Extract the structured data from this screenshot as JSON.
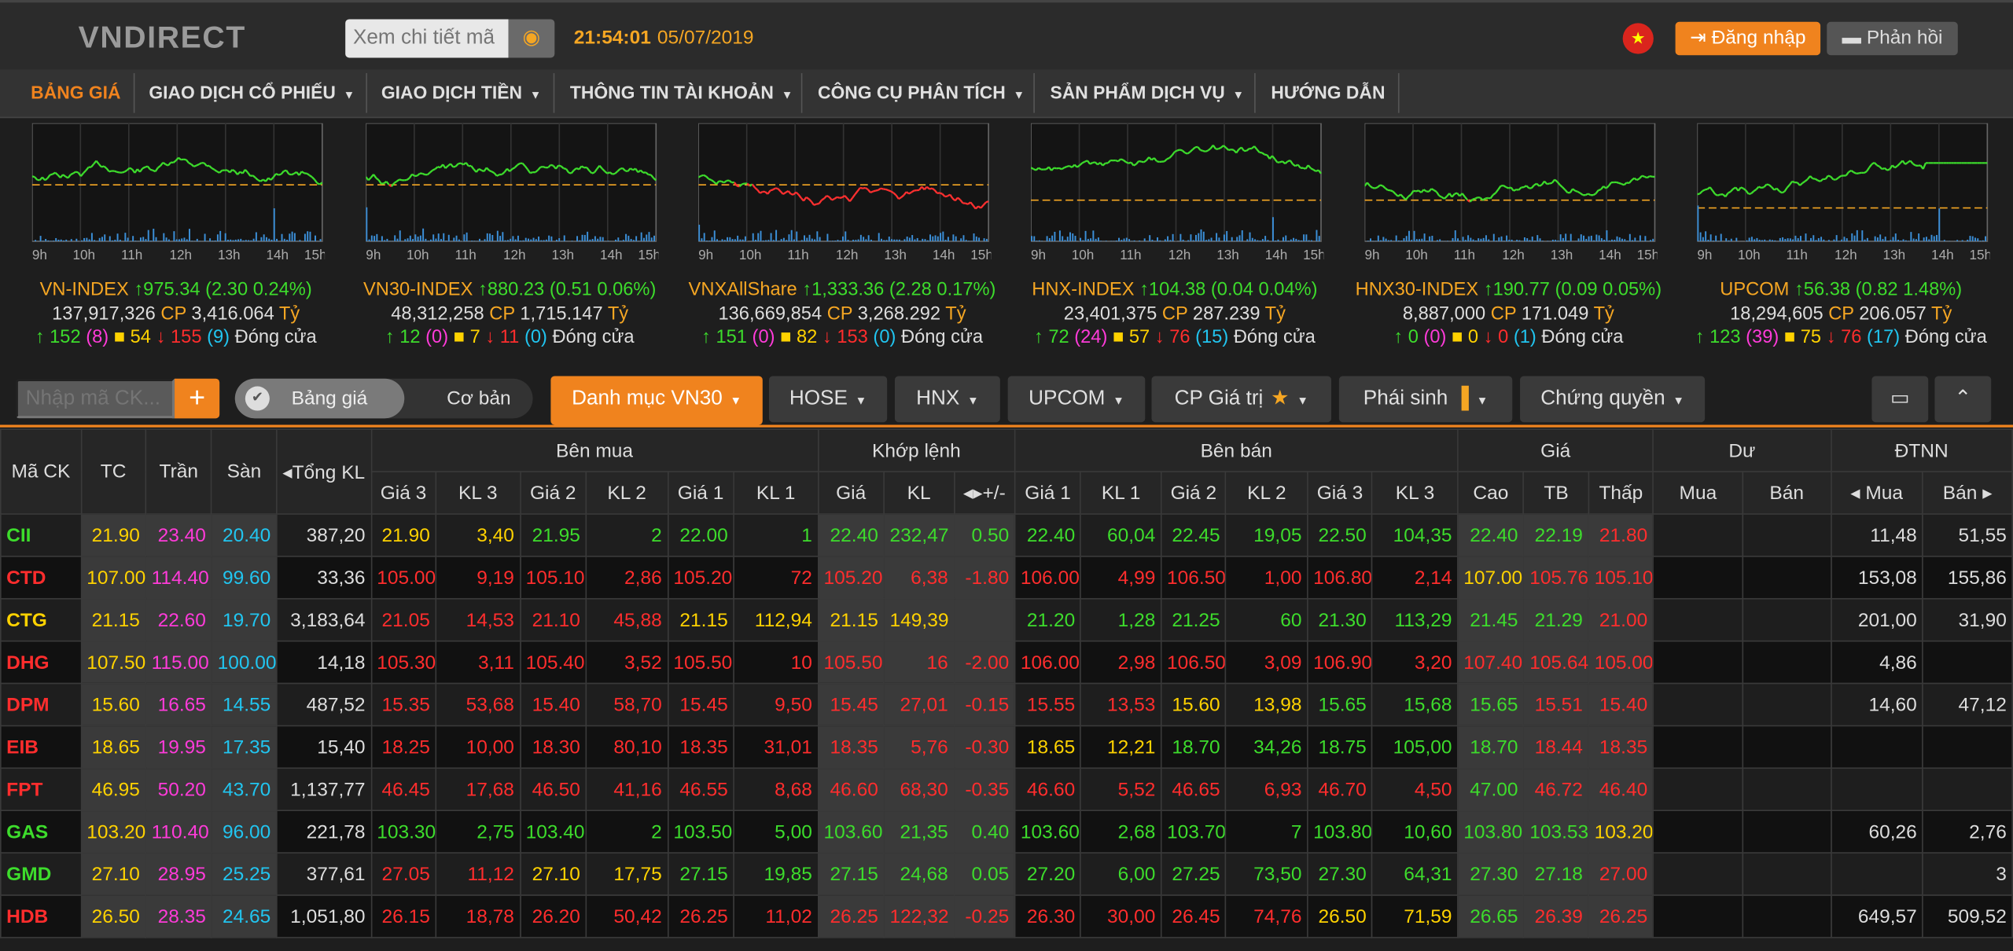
{
  "header": {
    "logo": "VNDIRECT",
    "search_placeholder": "Xem chi tiết mã",
    "time": "21:54:01",
    "date": "05/07/2019",
    "login": "Đăng nhập",
    "feedback": "Phản hồi"
  },
  "nav": [
    "BẢNG GIÁ",
    "GIAO DỊCH CỔ PHIẾU",
    "GIAO DỊCH TIỀN",
    "THÔNG TIN TÀI KHOẢN",
    "CÔNG CỤ PHÂN TÍCH",
    "SẢN PHẨM DỊCH VỤ",
    "HƯỚNG DẪN"
  ],
  "x_ticks": [
    "9h",
    "10h",
    "11h",
    "12h",
    "13h",
    "14h",
    "15h"
  ],
  "indices": [
    {
      "name": "VN-INDEX",
      "value": "975.34",
      "change": "(2.30 0.24%)",
      "vol": "137,917,326",
      "cp": "CP",
      "amt": "3,416.064",
      "unit": "Tỷ",
      "adv": "152",
      "ce": "(8)",
      "unch": "54",
      "dec": "155",
      "fl": "(9)",
      "status": "Đóng cửa"
    },
    {
      "name": "VN30-INDEX",
      "value": "880.23",
      "change": "(0.51 0.06%)",
      "vol": "48,312,258",
      "cp": "CP",
      "amt": "1,715.147",
      "unit": "Tỷ",
      "adv": "12",
      "ce": "(0)",
      "unch": "7",
      "dec": "11",
      "fl": "(0)",
      "status": "Đóng cửa"
    },
    {
      "name": "VNXAllShare",
      "value": "1,333.36",
      "change": "(2.28 0.17%)",
      "vol": "136,669,854",
      "cp": "CP",
      "amt": "3,268.292",
      "unit": "Tỷ",
      "adv": "151",
      "ce": "(0)",
      "unch": "82",
      "dec": "153",
      "fl": "(0)",
      "status": "Đóng cửa"
    },
    {
      "name": "HNX-INDEX",
      "value": "104.38",
      "change": "(0.04 0.04%)",
      "vol": "23,401,375",
      "cp": "CP",
      "amt": "287.239",
      "unit": "Tỷ",
      "adv": "72",
      "ce": "(24)",
      "unch": "57",
      "dec": "76",
      "fl": "(15)",
      "status": "Đóng cửa"
    },
    {
      "name": "HNX30-INDEX",
      "value": "190.77",
      "change": "(0.09 0.05%)",
      "vol": "8,887,000",
      "cp": "CP",
      "amt": "171.049",
      "unit": "Tỷ",
      "adv": "0",
      "ce": "(0)",
      "unch": "0",
      "dec": "0",
      "fl": "(1)",
      "status": "Đóng cửa"
    },
    {
      "name": "UPCOM",
      "value": "56.38",
      "change": "(0.82 1.48%)",
      "vol": "18,294,605",
      "cp": "CP",
      "amt": "206.057",
      "unit": "Tỷ",
      "adv": "123",
      "ce": "(39)",
      "unch": "75",
      "dec": "76",
      "fl": "(17)",
      "status": "Đóng cửa"
    }
  ],
  "filter": {
    "placeholder": "Nhập mã CK...",
    "toggle_a": "Bảng giá",
    "toggle_b": "Cơ bản"
  },
  "tabs": [
    "Danh mục VN30",
    "HOSE",
    "HNX",
    "UPCOM",
    "CP Giá trị",
    "Phái sinh",
    "Chứng quyền"
  ],
  "table": {
    "h1": [
      "Mã CK",
      "TC",
      "Trần",
      "Sàn",
      "Tổng KL",
      "Bên mua",
      "Khớp lệnh",
      "Bên bán",
      "Giá",
      "Dư",
      "ĐTNN"
    ],
    "h2": [
      "Giá 3",
      "KL 3",
      "Giá 2",
      "KL 2",
      "Giá 1",
      "KL 1",
      "Giá",
      "KL",
      "+/-",
      "Giá 1",
      "KL 1",
      "Giá 2",
      "KL 2",
      "Giá 3",
      "KL 3",
      "Cao",
      "TB",
      "Thấp",
      "Mua",
      "Bán",
      "Mua",
      "Bán"
    ],
    "rows": [
      [
        "CII",
        "21.90",
        "23.40",
        "20.40",
        "387,20",
        "21.90",
        "3,40",
        "21.95",
        "2",
        "22.00",
        "1",
        "22.40",
        "232,47",
        "0.50",
        "22.40",
        "60,04",
        "22.45",
        "19,05",
        "22.50",
        "104,35",
        "22.40",
        "22.19",
        "21.80",
        "",
        "",
        "11,48",
        "51,55"
      ],
      [
        "CTD",
        "107.00",
        "114.40",
        "99.60",
        "33,36",
        "105.00",
        "9,19",
        "105.10",
        "2,86",
        "105.20",
        "72",
        "105.20",
        "6,38",
        "-1.80",
        "106.00",
        "4,99",
        "106.50",
        "1,00",
        "106.80",
        "2,14",
        "107.00",
        "105.76",
        "105.10",
        "",
        "",
        "153,08",
        "155,86"
      ],
      [
        "CTG",
        "21.15",
        "22.60",
        "19.70",
        "3,183,64",
        "21.05",
        "14,53",
        "21.10",
        "45,88",
        "21.15",
        "112,94",
        "21.15",
        "149,39",
        "",
        "21.20",
        "1,28",
        "21.25",
        "60",
        "21.30",
        "113,29",
        "21.45",
        "21.29",
        "21.00",
        "",
        "",
        "201,00",
        "31,90"
      ],
      [
        "DHG",
        "107.50",
        "115.00",
        "100.00",
        "14,18",
        "105.30",
        "3,11",
        "105.40",
        "3,52",
        "105.50",
        "10",
        "105.50",
        "16",
        "-2.00",
        "106.00",
        "2,98",
        "106.50",
        "3,09",
        "106.90",
        "3,20",
        "107.40",
        "105.64",
        "105.00",
        "",
        "",
        "4,86",
        ""
      ],
      [
        "DPM",
        "15.60",
        "16.65",
        "14.55",
        "487,52",
        "15.35",
        "53,68",
        "15.40",
        "58,70",
        "15.45",
        "9,50",
        "15.45",
        "27,01",
        "-0.15",
        "15.55",
        "13,53",
        "15.60",
        "13,98",
        "15.65",
        "15,68",
        "15.65",
        "15.51",
        "15.40",
        "",
        "",
        "14,60",
        "47,12"
      ],
      [
        "EIB",
        "18.65",
        "19.95",
        "17.35",
        "15,40",
        "18.25",
        "10,00",
        "18.30",
        "80,10",
        "18.35",
        "31,01",
        "18.35",
        "5,76",
        "-0.30",
        "18.65",
        "12,21",
        "18.70",
        "34,26",
        "18.75",
        "105,00",
        "18.70",
        "18.44",
        "18.35",
        "",
        "",
        "",
        ""
      ],
      [
        "FPT",
        "46.95",
        "50.20",
        "43.70",
        "1,137,77",
        "46.45",
        "17,68",
        "46.50",
        "41,16",
        "46.55",
        "8,68",
        "46.60",
        "68,30",
        "-0.35",
        "46.60",
        "5,52",
        "46.65",
        "6,93",
        "46.70",
        "4,50",
        "47.00",
        "46.72",
        "46.40",
        "",
        "",
        "",
        ""
      ],
      [
        "GAS",
        "103.20",
        "110.40",
        "96.00",
        "221,78",
        "103.30",
        "2,75",
        "103.40",
        "2",
        "103.50",
        "5,00",
        "103.60",
        "21,35",
        "0.40",
        "103.60",
        "2,68",
        "103.70",
        "7",
        "103.80",
        "10,60",
        "103.80",
        "103.53",
        "103.20",
        "",
        "",
        "60,26",
        "2,76"
      ],
      [
        "GMD",
        "27.10",
        "28.95",
        "25.25",
        "377,61",
        "27.05",
        "11,12",
        "27.10",
        "17,75",
        "27.15",
        "19,85",
        "27.15",
        "24,68",
        "0.05",
        "27.20",
        "6,00",
        "27.25",
        "73,50",
        "27.30",
        "64,31",
        "27.30",
        "27.18",
        "27.00",
        "",
        "",
        "",
        "3"
      ],
      [
        "HDB",
        "26.50",
        "28.35",
        "24.65",
        "1,051,80",
        "26.15",
        "18,78",
        "26.20",
        "50,42",
        "26.25",
        "11,02",
        "26.25",
        "122,32",
        "-0.25",
        "26.30",
        "30,00",
        "26.45",
        "74,76",
        "26.50",
        "71,59",
        "26.65",
        "26.39",
        "26.25",
        "",
        "",
        "649,57",
        "509,52"
      ]
    ]
  }
}
